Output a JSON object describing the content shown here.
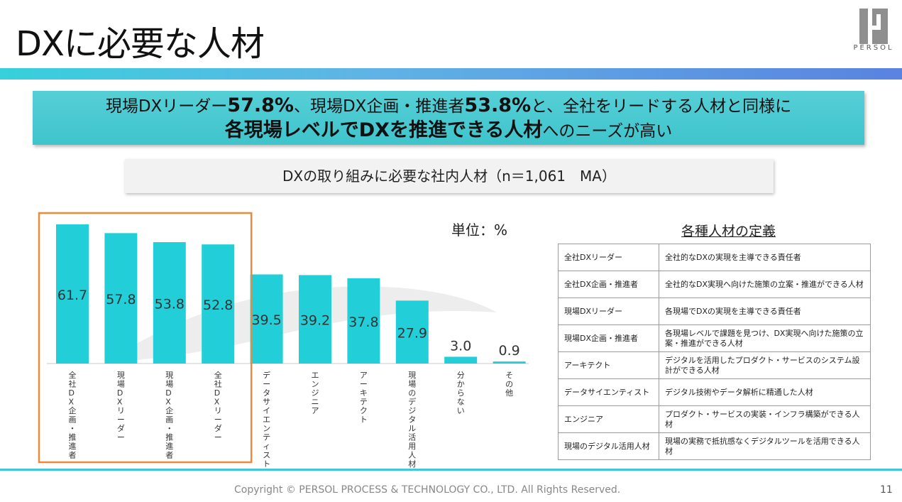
{
  "header": {
    "title": "DXに必要な人材",
    "logo_text": "PERSOL"
  },
  "headline": {
    "line1_a": "現場DXリーダー",
    "line1_b": "57.8%",
    "line1_c": "、現場DX企画・推進者",
    "line1_d": "53.8%",
    "line1_e": "と、全社をリードする人材と同様に",
    "line2_a": "各現場レベルでDXを推進できる人材",
    "line2_b": "へのニーズが高い"
  },
  "subtitle": "DXの取り組みに必要な社内人材（n＝1,061　MA）",
  "unit_label": "単位：%",
  "chart_data": {
    "type": "bar",
    "categories": [
      "全社DX企画・推進者",
      "現場DXリーダー",
      "現場DX企画・推進者",
      "全社DXリーダー",
      "データサイエンティスト",
      "エンジニア",
      "アーキテクト",
      "現場のデジタル活用人材",
      "分からない",
      "その他"
    ],
    "values": [
      61.7,
      57.8,
      53.8,
      52.8,
      39.5,
      39.2,
      37.8,
      27.9,
      3.0,
      0.9
    ],
    "value_labels": [
      "61.7",
      "57.8",
      "53.8",
      "52.8",
      "39.5",
      "39.2",
      "37.8",
      "27.9",
      "3.0",
      "0.9"
    ],
    "bar_color": "#22cfd9",
    "highlight_color": "#e98a3c",
    "highlight_range": [
      0,
      3
    ],
    "ylim": [
      0,
      62
    ]
  },
  "definitions": {
    "title": "各種人材の定義",
    "rows": [
      {
        "term": "全社DXリーダー",
        "desc": "全社的なDXの実現を主導できる責任者"
      },
      {
        "term": "全社DX企画・推進者",
        "desc": "全社的なDX実現へ向けた施策の立案・推進ができる人材"
      },
      {
        "term": "現場DXリーダー",
        "desc": "各現場でDXの実現を主導できる責任者"
      },
      {
        "term": "現場DX企画・推進者",
        "desc": "各現場レベルで課題を見つけ、DX実現へ向けた施策の立案・推進ができる人材"
      },
      {
        "term": "アーキテクト",
        "desc": "デジタルを活用したプロダクト・サービスのシステム設計ができる人材"
      },
      {
        "term": "データサイエンティスト",
        "desc": "デジタル技術やデータ解析に精通した人材"
      },
      {
        "term": "エンジニア",
        "desc": "プロダクト・サービスの実装・インフラ構築ができる人材"
      },
      {
        "term": "現場のデジタル活用人材",
        "desc": "現場の実務で抵抗感なくデジタルツールを活用できる人材"
      }
    ]
  },
  "footer": {
    "copyright": "Copyright © PERSOL PROCESS & TECHNOLOGY CO., LTD. All Rights Reserved.",
    "page_number": "11"
  }
}
